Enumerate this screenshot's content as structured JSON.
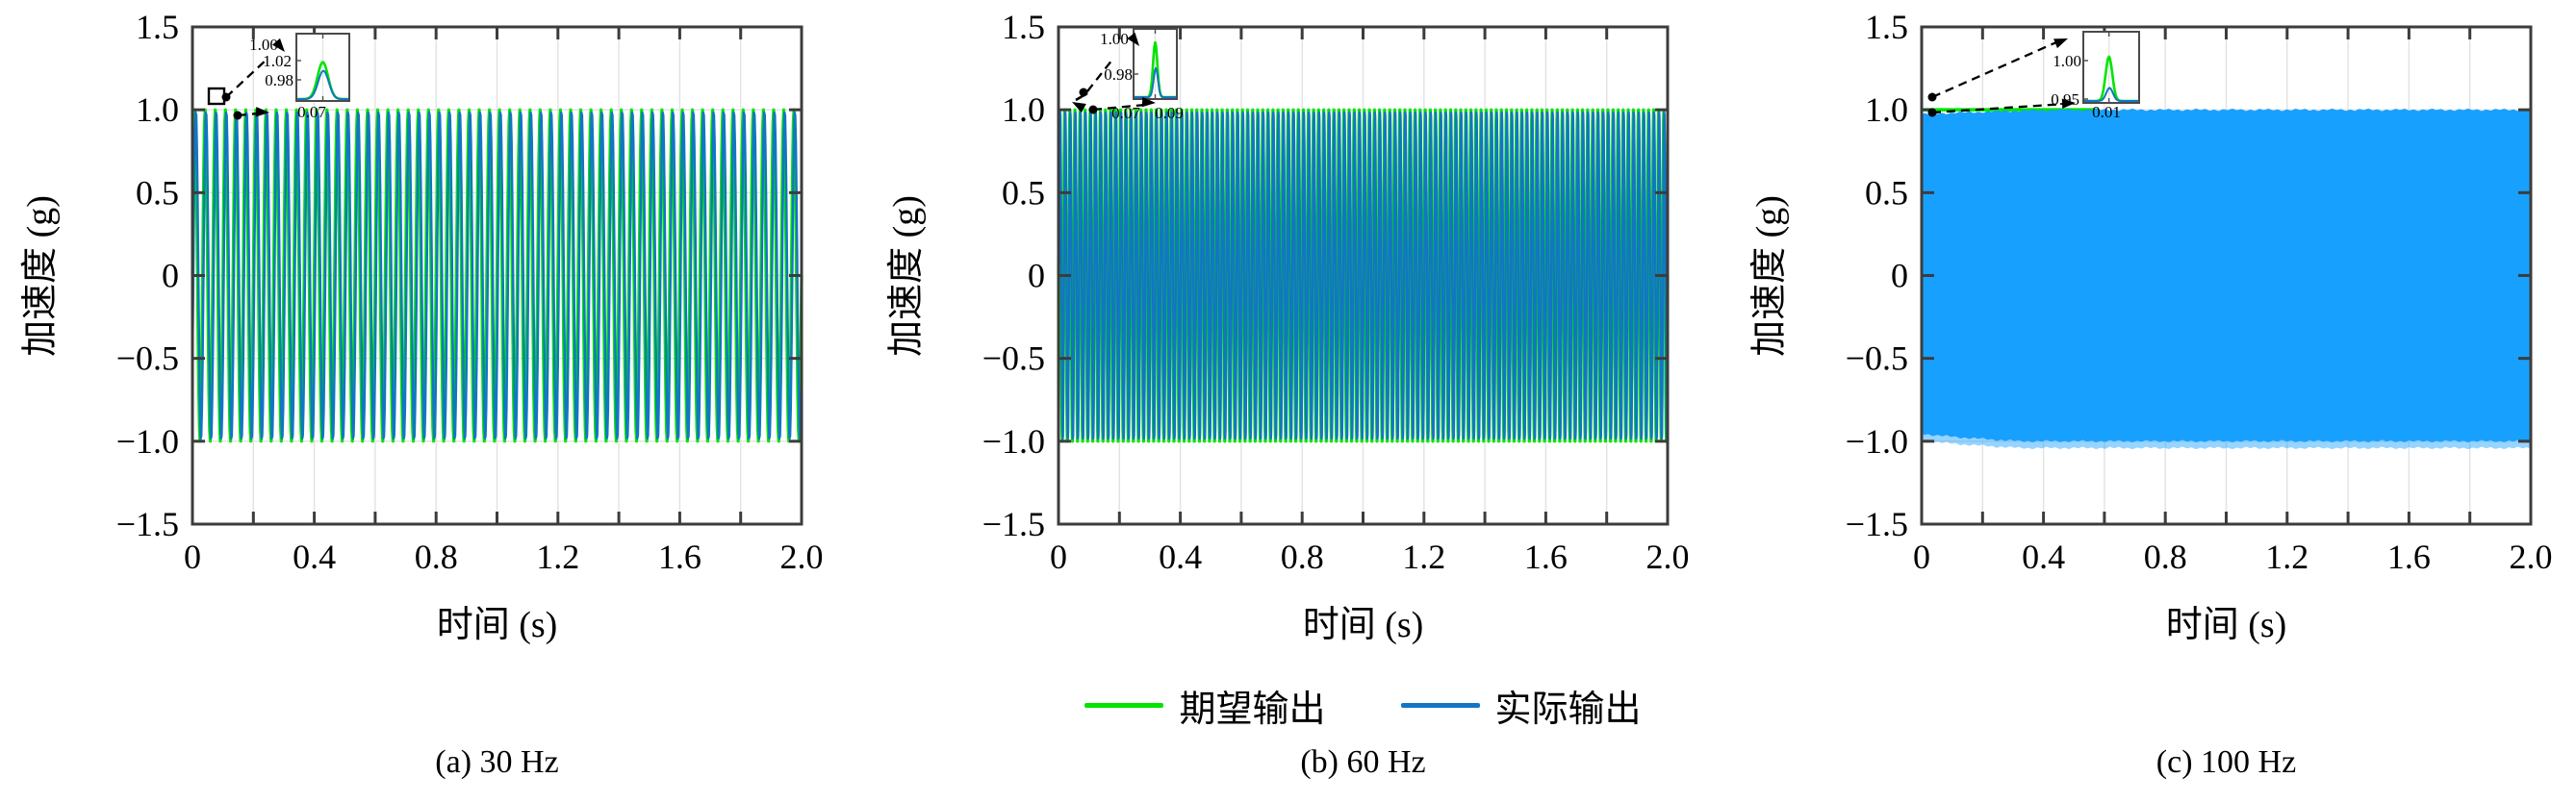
{
  "figure": {
    "background": "#ffffff",
    "axis_color": "#3c3c3c",
    "grid_color": "#e2e2e2",
    "annotation_color": "#000000"
  },
  "colors": {
    "expected": "#00e400",
    "actual": "#1276c4",
    "actual_dense_fill": "#18a0fe"
  },
  "legend": {
    "items": [
      {
        "label": "期望输出",
        "color_key": "expected"
      },
      {
        "label": "实际输出",
        "color_key": "actual"
      }
    ]
  },
  "chart_data": [
    {
      "type": "line",
      "panel": "a",
      "title": "(a) 30 Hz",
      "xlabel": "时间 (s)",
      "ylabel": "加速度 (g)",
      "xlim": [
        0,
        2
      ],
      "ylim": [
        -1.5,
        1.5
      ],
      "x_ticks": [
        0,
        0.4,
        0.8,
        1.2,
        1.6,
        2.0
      ],
      "x_tick_labels": [
        "0",
        "0.4",
        "0.8",
        "1.2",
        "1.6",
        "2.0"
      ],
      "y_ticks": [
        1.5,
        1.0,
        0.5,
        0,
        -0.5,
        -1.0,
        -1.5
      ],
      "y_tick_labels": [
        "1.5",
        "1.0",
        "0.5",
        "0",
        "−0.5",
        "−1.0",
        "−1.5"
      ],
      "grid": true,
      "legend_position": "below-figure",
      "render_hint": "stripes",
      "series": [
        {
          "name": "期望输出",
          "signal": "sine",
          "frequency_hz": 30,
          "amplitude_g": 1.0,
          "duration_s": 2.0
        },
        {
          "name": "实际输出",
          "signal": "sine",
          "frequency_hz": 30,
          "amplitude_g": 0.995,
          "duration_s": 2.0
        }
      ],
      "inset": {
        "y_tick_labels": [
          "1.02",
          "0.98"
        ],
        "x_tick_labels": [
          "0.07"
        ],
        "callout_value": "1.00"
      }
    },
    {
      "type": "line",
      "panel": "b",
      "title": "(b) 60 Hz",
      "xlabel": "时间 (s)",
      "ylabel": "加速度 (g)",
      "xlim": [
        0,
        2
      ],
      "ylim": [
        -1.5,
        1.5
      ],
      "x_ticks": [
        0,
        0.4,
        0.8,
        1.2,
        1.6,
        2.0
      ],
      "x_tick_labels": [
        "0",
        "0.4",
        "0.8",
        "1.2",
        "1.6",
        "2.0"
      ],
      "y_ticks": [
        1.5,
        1.0,
        0.5,
        0,
        -0.5,
        -1.0,
        -1.5
      ],
      "y_tick_labels": [
        "1.5",
        "1.0",
        "0.5",
        "0",
        "−0.5",
        "−1.0",
        "−1.5"
      ],
      "grid": true,
      "legend_position": "below-figure",
      "render_hint": "stripes",
      "series": [
        {
          "name": "期望输出",
          "signal": "sine",
          "frequency_hz": 60,
          "amplitude_g": 1.0,
          "duration_s": 2.0
        },
        {
          "name": "实际输出",
          "signal": "sine",
          "frequency_hz": 60,
          "amplitude_g": 0.995,
          "duration_s": 2.0
        }
      ],
      "inset": {
        "y_tick_labels": [
          "0.98"
        ],
        "x_tick_labels": [
          "0.07",
          "0.09"
        ],
        "callout_value": "1.00"
      }
    },
    {
      "type": "line",
      "panel": "c",
      "title": "(c) 100 Hz",
      "xlabel": "时间 (s)",
      "ylabel": "加速度 (g)",
      "xlim": [
        0,
        2
      ],
      "ylim": [
        -1.5,
        1.5
      ],
      "x_ticks": [
        0,
        0.4,
        0.8,
        1.2,
        1.6,
        2.0
      ],
      "x_tick_labels": [
        "0",
        "0.4",
        "0.8",
        "1.2",
        "1.6",
        "2.0"
      ],
      "y_ticks": [
        1.5,
        1.0,
        0.5,
        0,
        -0.5,
        -1.0,
        -1.5
      ],
      "y_tick_labels": [
        "1.5",
        "1.0",
        "0.5",
        "0",
        "−0.5",
        "−1.0",
        "−1.5"
      ],
      "grid": true,
      "legend_position": "below-figure",
      "render_hint": "solid",
      "series": [
        {
          "name": "期望输出",
          "signal": "sine",
          "frequency_hz": 100,
          "amplitude_g": 1.0,
          "duration_s": 2.0
        },
        {
          "name": "实际输出",
          "signal": "sine",
          "frequency_hz": 100,
          "amplitude_g": 1.0,
          "duration_s": 2.0,
          "amplitude_onset": {
            "top_initial": 0.972,
            "bottom_initial": 0.952,
            "settle_time_s": 0.45
          }
        }
      ],
      "inset": {
        "y_tick_labels": [
          "1.00",
          "0.95"
        ],
        "x_tick_labels": [
          "0.01"
        ],
        "callout_value": ""
      }
    }
  ]
}
